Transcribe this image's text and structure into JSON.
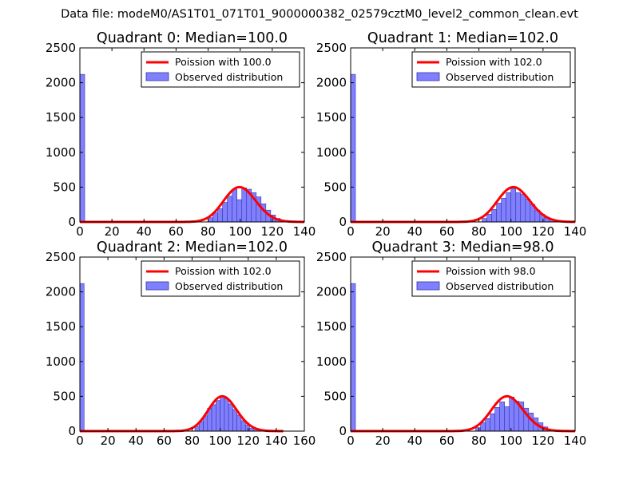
{
  "figure": {
    "suptitle": "Data file: modeM0/AS1T01_071T01_9000000382_02579cztM0_level2_common_clean.evt"
  },
  "colors": {
    "poisson_line": "#ff0000",
    "bars_fill": "#8080ff",
    "bars_edge": "#3333aa"
  },
  "chart_data": [
    {
      "type": "bar",
      "title": "Quadrant 0: Median=100.0",
      "xlim": [
        0,
        140
      ],
      "ylim": [
        0,
        2500
      ],
      "xticks": [
        "0",
        "20",
        "40",
        "60",
        "80",
        "100",
        "120",
        "140"
      ],
      "yticks": [
        "0",
        "500",
        "1000",
        "1500",
        "2000",
        "2500"
      ],
      "legend": {
        "placement": "top-right",
        "line_label": "Poission with 100.0",
        "bar_label": "Observed distribution"
      },
      "median": 100.0,
      "bin_width": 3,
      "bins": [
        [
          0,
          2120
        ],
        [
          80,
          60
        ],
        [
          83,
          130
        ],
        [
          86,
          190
        ],
        [
          89,
          280
        ],
        [
          92,
          370
        ],
        [
          95,
          470
        ],
        [
          98,
          320
        ],
        [
          101,
          490
        ],
        [
          104,
          470
        ],
        [
          107,
          420
        ],
        [
          110,
          360
        ],
        [
          113,
          260
        ],
        [
          116,
          170
        ],
        [
          119,
          100
        ],
        [
          122,
          50
        ],
        [
          125,
          20
        ]
      ]
    },
    {
      "type": "bar",
      "title": "Quadrant 1: Median=102.0",
      "xlim": [
        0,
        140
      ],
      "ylim": [
        0,
        2500
      ],
      "xticks": [
        "0",
        "20",
        "40",
        "60",
        "80",
        "100",
        "120",
        "140"
      ],
      "yticks": [
        "0",
        "500",
        "1000",
        "1500",
        "2000",
        "2500"
      ],
      "legend": {
        "placement": "top-right",
        "line_label": "Poission with 102.0",
        "bar_label": "Observed distribution"
      },
      "median": 102.0,
      "bin_width": 3,
      "bins": [
        [
          0,
          2120
        ],
        [
          82,
          50
        ],
        [
          85,
          110
        ],
        [
          88,
          180
        ],
        [
          91,
          270
        ],
        [
          94,
          340
        ],
        [
          97,
          420
        ],
        [
          100,
          480
        ],
        [
          103,
          420
        ],
        [
          106,
          400
        ],
        [
          109,
          330
        ],
        [
          112,
          250
        ],
        [
          115,
          170
        ],
        [
          118,
          110
        ],
        [
          121,
          60
        ],
        [
          124,
          30
        ],
        [
          127,
          10
        ]
      ]
    },
    {
      "type": "bar",
      "title": "Quadrant 2: Median=102.0",
      "xlim": [
        0,
        160
      ],
      "ylim": [
        0,
        2500
      ],
      "xticks": [
        "0",
        "20",
        "40",
        "60",
        "80",
        "100",
        "120",
        "140",
        "160"
      ],
      "yticks": [
        "0",
        "500",
        "1000",
        "1500",
        "2000",
        "2500"
      ],
      "legend": {
        "placement": "top-right",
        "line_label": "Poission with 102.0",
        "bar_label": "Observed distribution"
      },
      "median": 102.0,
      "line_xmax": 145,
      "bin_width": 3,
      "bins": [
        [
          0,
          2120
        ],
        [
          82,
          70
        ],
        [
          85,
          140
        ],
        [
          88,
          220
        ],
        [
          91,
          330
        ],
        [
          94,
          380
        ],
        [
          97,
          440
        ],
        [
          100,
          490
        ],
        [
          103,
          470
        ],
        [
          106,
          390
        ],
        [
          109,
          310
        ],
        [
          112,
          230
        ],
        [
          115,
          150
        ],
        [
          118,
          90
        ],
        [
          121,
          40
        ],
        [
          124,
          15
        ]
      ]
    },
    {
      "type": "bar",
      "title": "Quadrant 3: Median=98.0",
      "xlim": [
        0,
        140
      ],
      "ylim": [
        0,
        2500
      ],
      "xticks": [
        "0",
        "20",
        "40",
        "60",
        "80",
        "100",
        "120",
        "140"
      ],
      "yticks": [
        "0",
        "500",
        "1000",
        "1500",
        "2000",
        "2500"
      ],
      "legend": {
        "placement": "top-right",
        "line_label": "Poission with 98.0",
        "bar_label": "Observed distribution"
      },
      "median": 98.0,
      "bin_width": 3,
      "bins": [
        [
          0,
          2120
        ],
        [
          78,
          50
        ],
        [
          81,
          120
        ],
        [
          84,
          180
        ],
        [
          87,
          250
        ],
        [
          90,
          340
        ],
        [
          93,
          420
        ],
        [
          96,
          350
        ],
        [
          99,
          490
        ],
        [
          102,
          430
        ],
        [
          105,
          420
        ],
        [
          108,
          330
        ],
        [
          111,
          260
        ],
        [
          114,
          190
        ],
        [
          117,
          120
        ],
        [
          120,
          60
        ],
        [
          123,
          20
        ]
      ]
    }
  ]
}
